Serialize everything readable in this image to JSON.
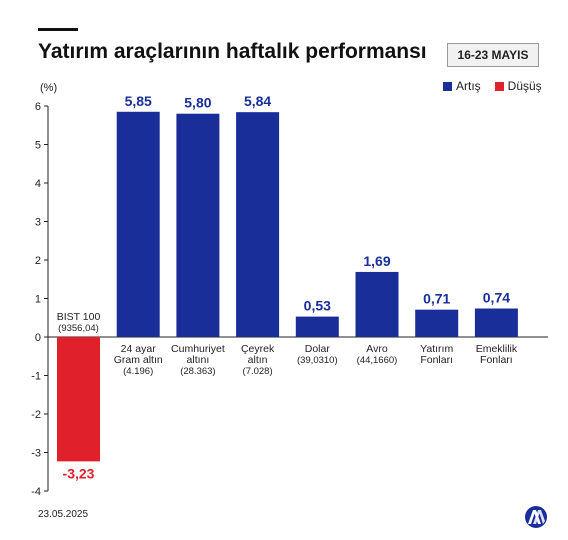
{
  "header": {
    "title": "Yatırım araçlarının haftalık performansı",
    "date_range": "16-23 MAYIS"
  },
  "legend": [
    {
      "label": "Artış",
      "color": "#1a2e99"
    },
    {
      "label": "Düşüş",
      "color": "#e0202a"
    }
  ],
  "footer": {
    "date": "23.05.2025"
  },
  "logo": {
    "icon": "aa-logo-icon",
    "color": "#1a2e99"
  },
  "chart_data": {
    "type": "bar",
    "ylabel": "(%)",
    "ylim": [
      -4,
      6
    ],
    "yticks": [
      "6",
      "5",
      "4",
      "3",
      "2",
      "1",
      "0",
      "-1",
      "-2",
      "-3",
      "-4"
    ],
    "grid": false,
    "legend_position": "top-right",
    "categories": [
      {
        "lines": [
          "BIST 100",
          "(9356,04)"
        ],
        "value": -3.23,
        "value_label": "-3,23"
      },
      {
        "lines": [
          "24 ayar",
          "Gram altın",
          "(4.196)"
        ],
        "value": 5.85,
        "value_label": "5,85"
      },
      {
        "lines": [
          "Cumhuriyet",
          "altını",
          "(28.363)"
        ],
        "value": 5.8,
        "value_label": "5,80"
      },
      {
        "lines": [
          "Çeyrek",
          "altın",
          "(7.028)"
        ],
        "value": 5.84,
        "value_label": "5,84"
      },
      {
        "lines": [
          "Dolar",
          "(39,0310)"
        ],
        "value": 0.53,
        "value_label": "0,53"
      },
      {
        "lines": [
          "Avro",
          "(44,1660)"
        ],
        "value": 1.69,
        "value_label": "1,69"
      },
      {
        "lines": [
          "Yatırım",
          "Fonları"
        ],
        "value": 0.71,
        "value_label": "0,71"
      },
      {
        "lines": [
          "Emeklilik",
          "Fonları"
        ],
        "value": 0.74,
        "value_label": "0,74"
      }
    ]
  }
}
